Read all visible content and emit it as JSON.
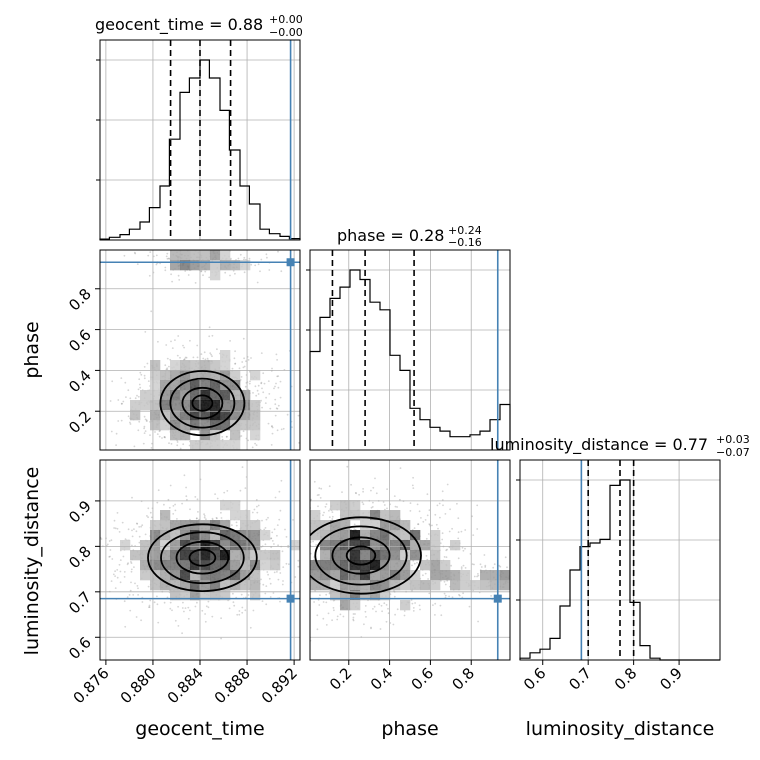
{
  "chart_data": {
    "type": "corner",
    "parameters": [
      "geocent_time",
      "phase",
      "luminosity_distance"
    ],
    "ranges": {
      "geocent_time": [
        0.8755,
        0.8925
      ],
      "phase": [
        0.01,
        0.99
      ],
      "luminosity_distance": [
        0.55,
        0.99
      ]
    },
    "ticks": {
      "geocent_time": [
        "0.876",
        "0.880",
        "0.884",
        "0.888",
        "0.892"
      ],
      "phase": [
        "0.2",
        "0.4",
        "0.6",
        "0.8"
      ],
      "luminosity_distance": [
        "0.6",
        "0.7",
        "0.8",
        "0.9"
      ]
    },
    "titles": {
      "geocent_time": {
        "text": "geocent_time = 0.88",
        "plus": "+0.00",
        "minus": "−0.00"
      },
      "phase": {
        "text": "phase = 0.28",
        "plus": "+0.24",
        "minus": "−0.16"
      },
      "luminosity_distance": {
        "text": "luminosity_distance = 0.77",
        "plus": "+0.03",
        "minus": "−0.07"
      }
    },
    "axis_labels": {
      "x": [
        "geocent_time",
        "phase",
        "luminosity_distance"
      ],
      "y": [
        "phase",
        "luminosity_distance"
      ]
    },
    "medians": {
      "geocent_time": 0.884,
      "phase": 0.28,
      "luminosity_distance": 0.77
    },
    "quantiles": {
      "geocent_time": [
        0.8815,
        0.884,
        0.8866
      ],
      "phase": [
        0.12,
        0.28,
        0.52
      ],
      "luminosity_distance": [
        0.7,
        0.77,
        0.8
      ]
    },
    "truths": {
      "geocent_time": 0.8917,
      "phase": 0.93,
      "luminosity_distance": 0.685
    },
    "histograms": {
      "geocent_time": {
        "edges": [
          0.8755,
          0.8763,
          0.8772,
          0.878,
          0.8789,
          0.8797,
          0.8806,
          0.8814,
          0.8823,
          0.8831,
          0.884,
          0.8848,
          0.8857,
          0.8865,
          0.8874,
          0.8882,
          0.8891,
          0.8899,
          0.8908,
          0.8916,
          0.8925
        ],
        "counts": [
          0.005,
          0.015,
          0.03,
          0.06,
          0.1,
          0.18,
          0.3,
          0.56,
          0.82,
          0.9,
          1.0,
          0.9,
          0.72,
          0.5,
          0.3,
          0.2,
          0.06,
          0.035,
          0.02,
          0.008
        ]
      },
      "phase": {
        "edges": [
          0.01,
          0.059,
          0.108,
          0.157,
          0.206,
          0.255,
          0.304,
          0.353,
          0.402,
          0.451,
          0.5,
          0.549,
          0.598,
          0.647,
          0.696,
          0.745,
          0.794,
          0.843,
          0.892,
          0.941,
          0.99
        ],
        "counts": [
          0.52,
          0.7,
          0.8,
          0.86,
          0.95,
          0.9,
          0.78,
          0.74,
          0.5,
          0.42,
          0.22,
          0.16,
          0.12,
          0.1,
          0.07,
          0.07,
          0.08,
          0.1,
          0.16,
          0.24
        ]
      },
      "luminosity_distance": {
        "edges": [
          0.55,
          0.572,
          0.594,
          0.616,
          0.638,
          0.66,
          0.682,
          0.704,
          0.726,
          0.748,
          0.77,
          0.792,
          0.814,
          0.836,
          0.858,
          0.88,
          0.902,
          0.924,
          0.946,
          0.968,
          0.99
        ],
        "counts": [
          0.01,
          0.04,
          0.06,
          0.12,
          0.3,
          0.5,
          0.63,
          0.65,
          0.67,
          0.97,
          1.0,
          0.32,
          0.08,
          0.01,
          0.0,
          0.0,
          0.0,
          0.0,
          0.0,
          0.0
        ]
      }
    },
    "density_2d": [
      {
        "x": "geocent_time",
        "y": "phase",
        "peak": [
          0.8842,
          0.24
        ],
        "spread": [
          0.0017,
          0.075
        ],
        "mode_band": [
          0.8843,
          0.93
        ]
      },
      {
        "x": "geocent_time",
        "y": "luminosity_distance",
        "peak": [
          0.8842,
          0.775
        ],
        "spread": [
          0.0022,
          0.035
        ]
      },
      {
        "x": "phase",
        "y": "luminosity_distance",
        "peak": [
          0.26,
          0.78
        ],
        "spread": [
          0.14,
          0.04
        ],
        "mode_band": [
          0.97,
          0.73
        ]
      }
    ],
    "colors": {
      "truth": "#4682b4",
      "contour": "#000000",
      "density": "#000000",
      "grid": "#b0b0b0"
    },
    "grid": true
  }
}
